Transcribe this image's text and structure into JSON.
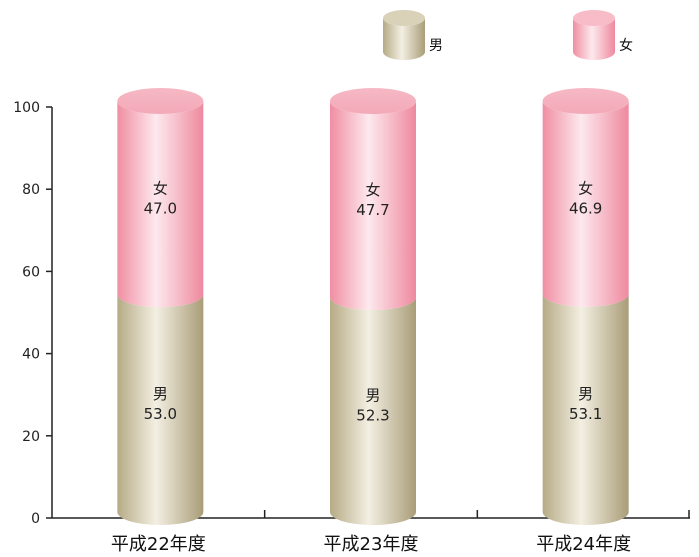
{
  "chart_data": {
    "type": "bar",
    "stacked": true,
    "style": "3d-cylinder",
    "categories": [
      "平成22年度",
      "平成23年度",
      "平成24年度"
    ],
    "series": [
      {
        "name": "男",
        "values": [
          53.0,
          52.3,
          53.1
        ],
        "labels": [
          "53.0",
          "52.3",
          "53.1"
        ],
        "color": "#c9c0a0"
      },
      {
        "name": "女",
        "values": [
          47.0,
          47.7,
          46.9
        ],
        "labels": [
          "47.0",
          "47.7",
          "46.9"
        ],
        "color": "#f2a3b3"
      }
    ],
    "yticks": [
      "0",
      "20",
      "40",
      "60",
      "80",
      "100"
    ],
    "ylim": [
      0,
      100
    ],
    "legend": "top-right",
    "grid": false
  }
}
